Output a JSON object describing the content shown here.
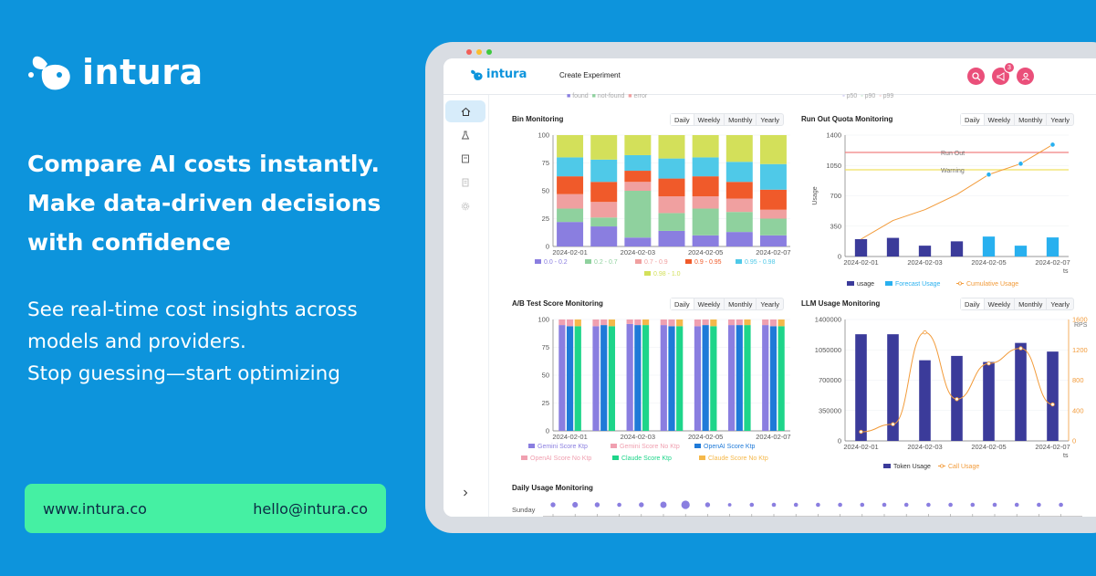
{
  "brand": {
    "name": "intura"
  },
  "headline": [
    "Compare AI costs instantly.",
    "Make data-driven decisions",
    "with confidence"
  ],
  "subtext": [
    "See real-time cost insights across",
    "models and providers.",
    "Stop guessing—start optimizing"
  ],
  "contact": {
    "website": "www.intura.co",
    "email": "hello@intura.co"
  },
  "app": {
    "logo": "intura",
    "nav_link": "Create Experiment",
    "notification_count": "3",
    "tabs": [
      "Daily",
      "Weekly",
      "Monthly",
      "Yearly"
    ],
    "top_legend_left": [
      "found",
      "not-found",
      "error"
    ],
    "top_legend_right": [
      "p50",
      "p90",
      "p99"
    ],
    "colors": {
      "accent": "#0d94dc",
      "brand_green": "#45f0a3",
      "nav_icon": "#ea4f7a"
    }
  },
  "panels": {
    "bin": "Bin Monitoring",
    "quota": "Run Out Quota Monitoring",
    "ab": "A/B Test Score Monitoring",
    "llm": "LLM Usage Monitoring",
    "daily": "Daily Usage Monitoring"
  },
  "chart_data": [
    {
      "id": "bin",
      "type": "bar",
      "stacked": true,
      "categories": [
        "2024-02-01",
        "2024-02-02",
        "2024-02-03",
        "2024-02-04",
        "2024-02-05",
        "2024-02-06",
        "2024-02-07"
      ],
      "x_tick_labels": [
        "2024-02-01",
        "2024-02-03",
        "2024-02-05",
        "2024-02-07"
      ],
      "ylim": [
        0,
        100
      ],
      "y_ticks": [
        0,
        25,
        50,
        75,
        100
      ],
      "series": [
        {
          "name": "0.0 - 0.2",
          "color": "#8a7ee0",
          "values": [
            22,
            18,
            8,
            14,
            10,
            13,
            10
          ]
        },
        {
          "name": "0.2 - 0.7",
          "color": "#8fd19e",
          "values": [
            12,
            8,
            42,
            16,
            24,
            18,
            15
          ]
        },
        {
          "name": "0.7 - 0.9",
          "color": "#f0a0a0",
          "values": [
            13,
            14,
            8,
            15,
            11,
            12,
            8
          ]
        },
        {
          "name": "0.9 - 0.95",
          "color": "#f05a2a",
          "values": [
            16,
            18,
            10,
            16,
            18,
            15,
            18
          ]
        },
        {
          "name": "0.95 - 0.98",
          "color": "#4fc9e8",
          "values": [
            17,
            20,
            14,
            18,
            17,
            18,
            23
          ]
        },
        {
          "name": "0.98 - 1.0",
          "color": "#d3e05a",
          "values": [
            20,
            22,
            18,
            21,
            20,
            24,
            26
          ]
        }
      ]
    },
    {
      "id": "quota",
      "type": "bar",
      "categories": [
        "2024-02-01",
        "2024-02-02",
        "2024-02-03",
        "2024-02-04",
        "2024-02-05",
        "2024-02-06",
        "2024-02-07"
      ],
      "x_tick_labels": [
        "2024-02-01",
        "2024-02-03",
        "2024-02-05",
        "2024-02-07"
      ],
      "xlabel": "ts",
      "ylabel": "Usage",
      "ylim": [
        0,
        1400
      ],
      "y_ticks": [
        0,
        350,
        700,
        1050,
        1400
      ],
      "thresholds": [
        {
          "name": "Run Out",
          "value": 1200,
          "color": "#f08080"
        },
        {
          "name": "Warning",
          "value": 1000,
          "color": "#f0e060"
        }
      ],
      "series": [
        {
          "name": "usage",
          "color": "#3b3b9a",
          "values": [
            200,
            215,
            125,
            175,
            null,
            null,
            null
          ]
        },
        {
          "name": "Forecast Usage",
          "color": "#28b0ef",
          "values": [
            null,
            null,
            null,
            null,
            230,
            125,
            220
          ]
        },
        {
          "name": "Cumulative Usage",
          "color": "#f29b3a",
          "values": [
            200,
            415,
            540,
            715,
            945,
            1070,
            1290
          ]
        }
      ]
    },
    {
      "id": "ab",
      "type": "bar",
      "stacked": true,
      "categories": [
        "2024-02-01",
        "2024-02-02",
        "2024-02-03",
        "2024-02-04",
        "2024-02-05",
        "2024-02-06",
        "2024-02-07"
      ],
      "x_tick_labels": [
        "2024-02-01",
        "2024-02-03",
        "2024-02-05",
        "2024-02-07"
      ],
      "ylim": [
        0,
        100
      ],
      "y_ticks": [
        0,
        25,
        50,
        75,
        100
      ],
      "groups": [
        "Gemini",
        "OpenAI",
        "Claude"
      ],
      "series": [
        {
          "name": "Gemini Score Ktp",
          "color": "#8a7ee0",
          "group": "Gemini",
          "values": [
            95,
            94,
            96,
            95,
            94,
            95,
            95
          ]
        },
        {
          "name": "Gemini Score No Ktp",
          "color": "#f0a0b0",
          "group": "Gemini",
          "values": [
            5,
            6,
            4,
            5,
            6,
            5,
            5
          ]
        },
        {
          "name": "OpenAI Score Ktp",
          "color": "#1f7ad8",
          "group": "OpenAI",
          "values": [
            94,
            95,
            95,
            94,
            95,
            95,
            94
          ]
        },
        {
          "name": "OpenAI Score No Ktp",
          "color": "#f0a0b0",
          "group": "OpenAI",
          "values": [
            6,
            5,
            5,
            6,
            5,
            5,
            6
          ]
        },
        {
          "name": "Claude Score Ktp",
          "color": "#1ed58a",
          "group": "Claude",
          "values": [
            94,
            94,
            95,
            94,
            94,
            95,
            94
          ]
        },
        {
          "name": "Claude Score No Ktp",
          "color": "#f5b84a",
          "group": "Claude",
          "values": [
            6,
            6,
            5,
            6,
            6,
            5,
            6
          ]
        }
      ]
    },
    {
      "id": "llm",
      "type": "bar",
      "categories": [
        "2024-02-01",
        "2024-02-02",
        "2024-02-03",
        "2024-02-04",
        "2024-02-05",
        "2024-02-06",
        "2024-02-07"
      ],
      "x_tick_labels": [
        "2024-02-01",
        "2024-02-03",
        "2024-02-05",
        "2024-02-07"
      ],
      "xlabel": "ts",
      "ylim": [
        0,
        1400000
      ],
      "y_ticks": [
        0,
        350000,
        700000,
        1050000,
        1400000
      ],
      "y2_label": "RPS",
      "y2lim": [
        0,
        1600
      ],
      "y2_ticks": [
        0,
        400,
        800,
        1200,
        1600
      ],
      "series": [
        {
          "name": "Token Usage",
          "color": "#3b3b9a",
          "axis": "left",
          "values": [
            1230000,
            1230000,
            930000,
            980000,
            910000,
            1130000,
            1030000
          ]
        },
        {
          "name": "Call Usage",
          "color": "#f29b3a",
          "axis": "right",
          "values": [
            120,
            220,
            1430,
            550,
            1020,
            1220,
            480
          ]
        }
      ]
    },
    {
      "id": "daily",
      "type": "scatter",
      "y_categories": [
        "Sunday"
      ],
      "values": [
        7,
        8,
        7,
        6,
        7,
        9,
        12,
        7,
        5,
        6,
        6,
        6,
        6,
        6,
        6,
        6,
        6,
        6,
        6,
        6,
        6,
        6,
        6,
        6
      ],
      "color": "#8a7ee0"
    }
  ]
}
